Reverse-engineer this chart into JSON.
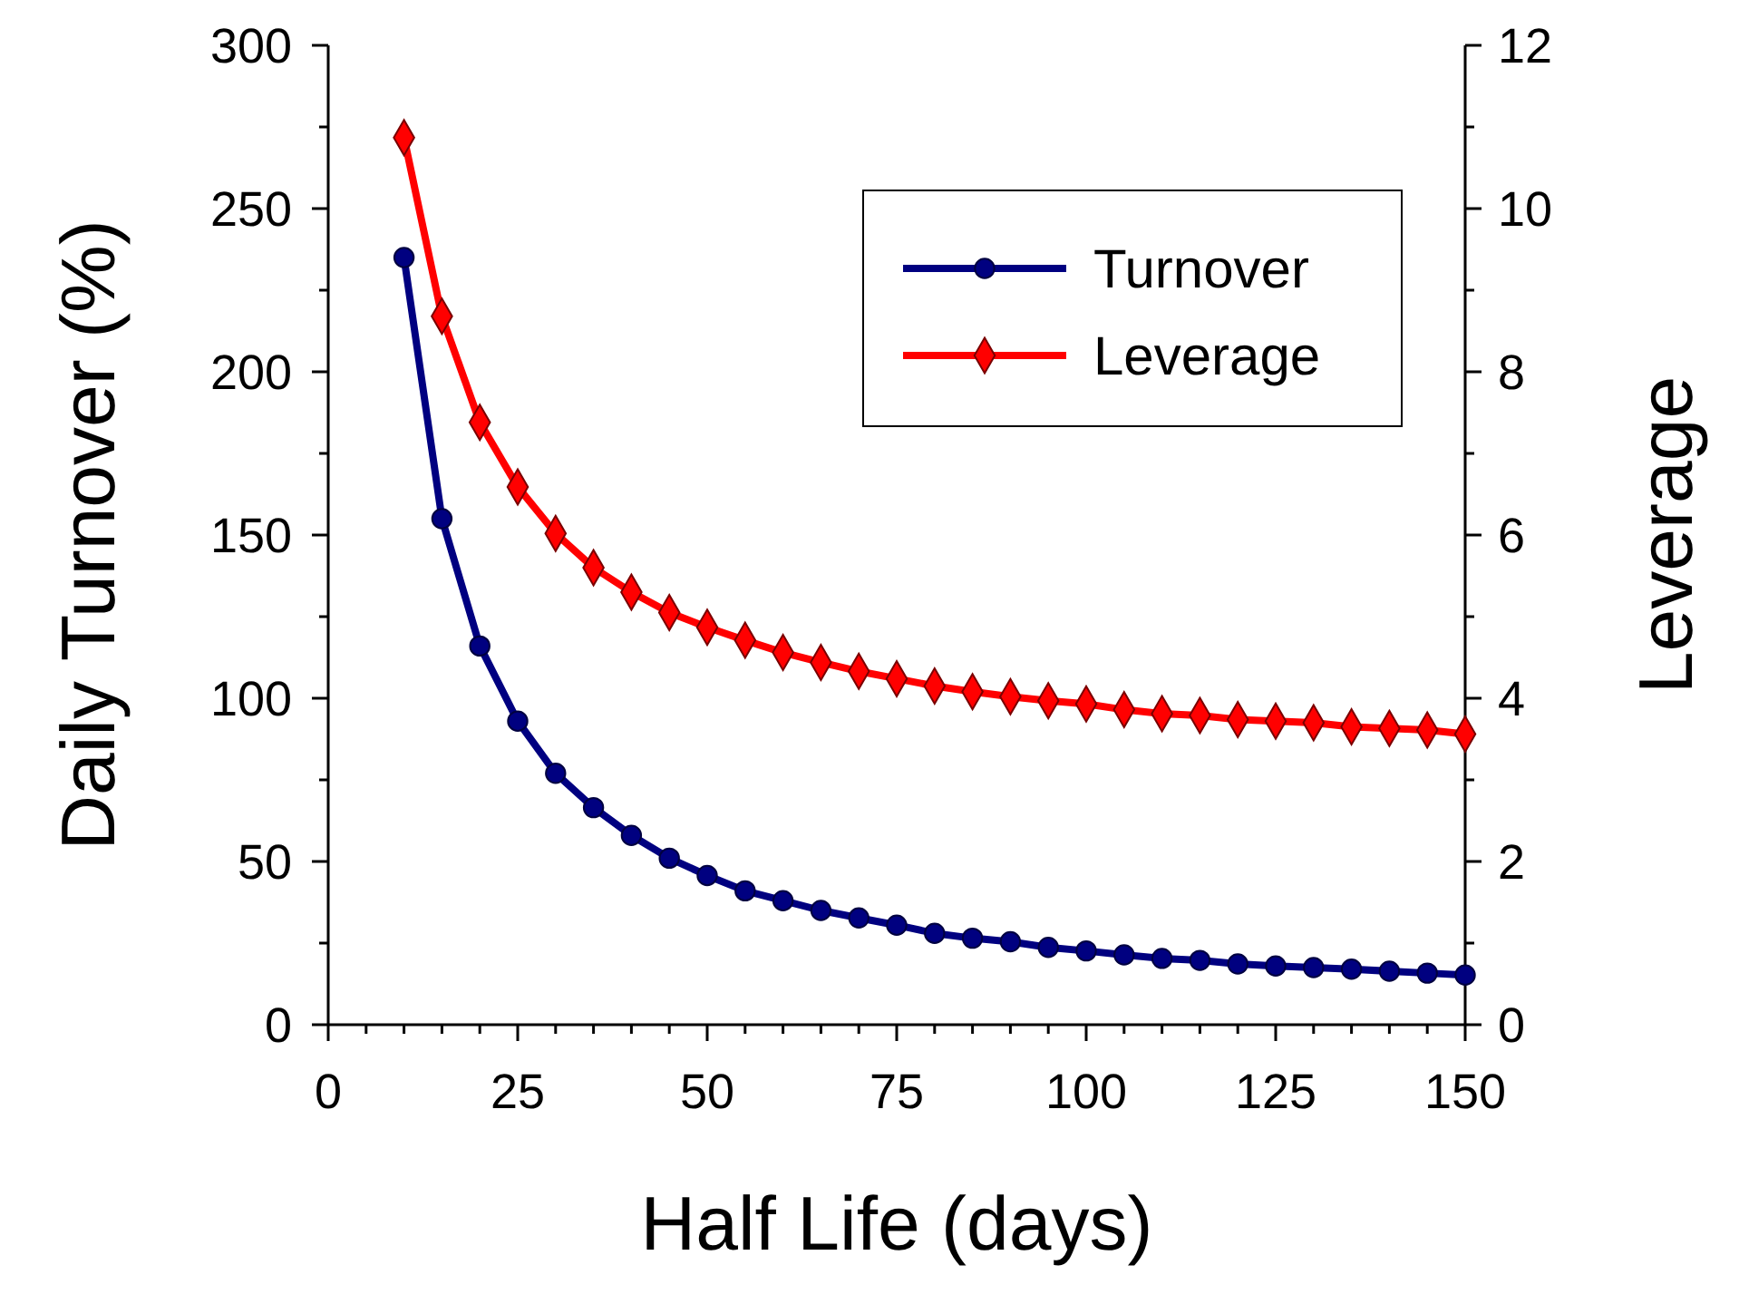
{
  "chart_data": {
    "type": "line",
    "xlabel": "Half Life (days)",
    "ylabel": "Daily Turnover (%)",
    "y2label": "Leverage",
    "x": [
      10,
      15,
      20,
      25,
      30,
      35,
      40,
      45,
      50,
      55,
      60,
      65,
      70,
      75,
      80,
      85,
      90,
      95,
      100,
      105,
      110,
      115,
      120,
      125,
      130,
      135,
      140,
      145,
      150
    ],
    "series": [
      {
        "name": "Turnover",
        "color": "#000080",
        "marker": "circle",
        "values": [
          235,
          155,
          116,
          93,
          77,
          66.5,
          58,
          51,
          45.7,
          41,
          38,
          35,
          32.7,
          30.5,
          28,
          26.5,
          25.4,
          23.7,
          22.6,
          21.4,
          20.3,
          19.7,
          18.6,
          18,
          17.5,
          17,
          16.4,
          15.8,
          15.2
        ]
      },
      {
        "name": "Leverage",
        "color": "#ff0000",
        "marker": "diamond",
        "axis": "y2",
        "values": [
          10.87,
          8.68,
          7.38,
          6.59,
          6.02,
          5.6,
          5.3,
          5.05,
          4.87,
          4.71,
          4.56,
          4.44,
          4.33,
          4.24,
          4.15,
          4.08,
          4.02,
          3.97,
          3.93,
          3.86,
          3.81,
          3.79,
          3.74,
          3.72,
          3.7,
          3.65,
          3.63,
          3.61,
          3.56
        ]
      }
    ],
    "xlim": [
      0,
      150
    ],
    "xticks": [
      0,
      {
        "value": 5,
        "label": null
      },
      {
        "value": 10,
        "label": null
      },
      {
        "value": 15,
        "label": null
      },
      {
        "value": 20,
        "label": null
      },
      25,
      {
        "value": 30,
        "label": null
      },
      {
        "value": 35,
        "label": null
      },
      {
        "value": 40,
        "label": null
      },
      {
        "value": 45,
        "label": null
      },
      50,
      {
        "value": 55,
        "label": null
      },
      {
        "value": 60,
        "label": null
      },
      {
        "value": 65,
        "label": null
      },
      {
        "value": 70,
        "label": null
      },
      75,
      {
        "value": 80,
        "label": null
      },
      {
        "value": 85,
        "label": null
      },
      {
        "value": 90,
        "label": null
      },
      {
        "value": 95,
        "label": null
      },
      100,
      {
        "value": 105,
        "label": null
      },
      {
        "value": 110,
        "label": null
      },
      {
        "value": 115,
        "label": null
      },
      {
        "value": 120,
        "label": null
      },
      125,
      {
        "value": 130,
        "label": null
      },
      {
        "value": 135,
        "label": null
      },
      {
        "value": 140,
        "label": null
      },
      {
        "value": 145,
        "label": null
      },
      150
    ],
    "ylim": [
      0,
      300
    ],
    "yticks": [
      0,
      {
        "value": 25,
        "label": null
      },
      50,
      {
        "value": 75,
        "label": null
      },
      100,
      {
        "value": 125,
        "label": null
      },
      150,
      {
        "value": 175,
        "label": null
      },
      200,
      {
        "value": 225,
        "label": null
      },
      250,
      {
        "value": 275,
        "label": null
      },
      300
    ],
    "y2lim": [
      0,
      12
    ],
    "y2ticks": [
      0,
      {
        "value": 1,
        "label": null
      },
      2,
      {
        "value": 3,
        "label": null
      },
      4,
      {
        "value": 5,
        "label": null
      },
      6,
      {
        "value": 7,
        "label": null
      },
      8,
      {
        "value": 9,
        "label": null
      },
      10,
      {
        "value": 11,
        "label": null
      },
      12
    ],
    "legend": "top right",
    "grid": false
  }
}
